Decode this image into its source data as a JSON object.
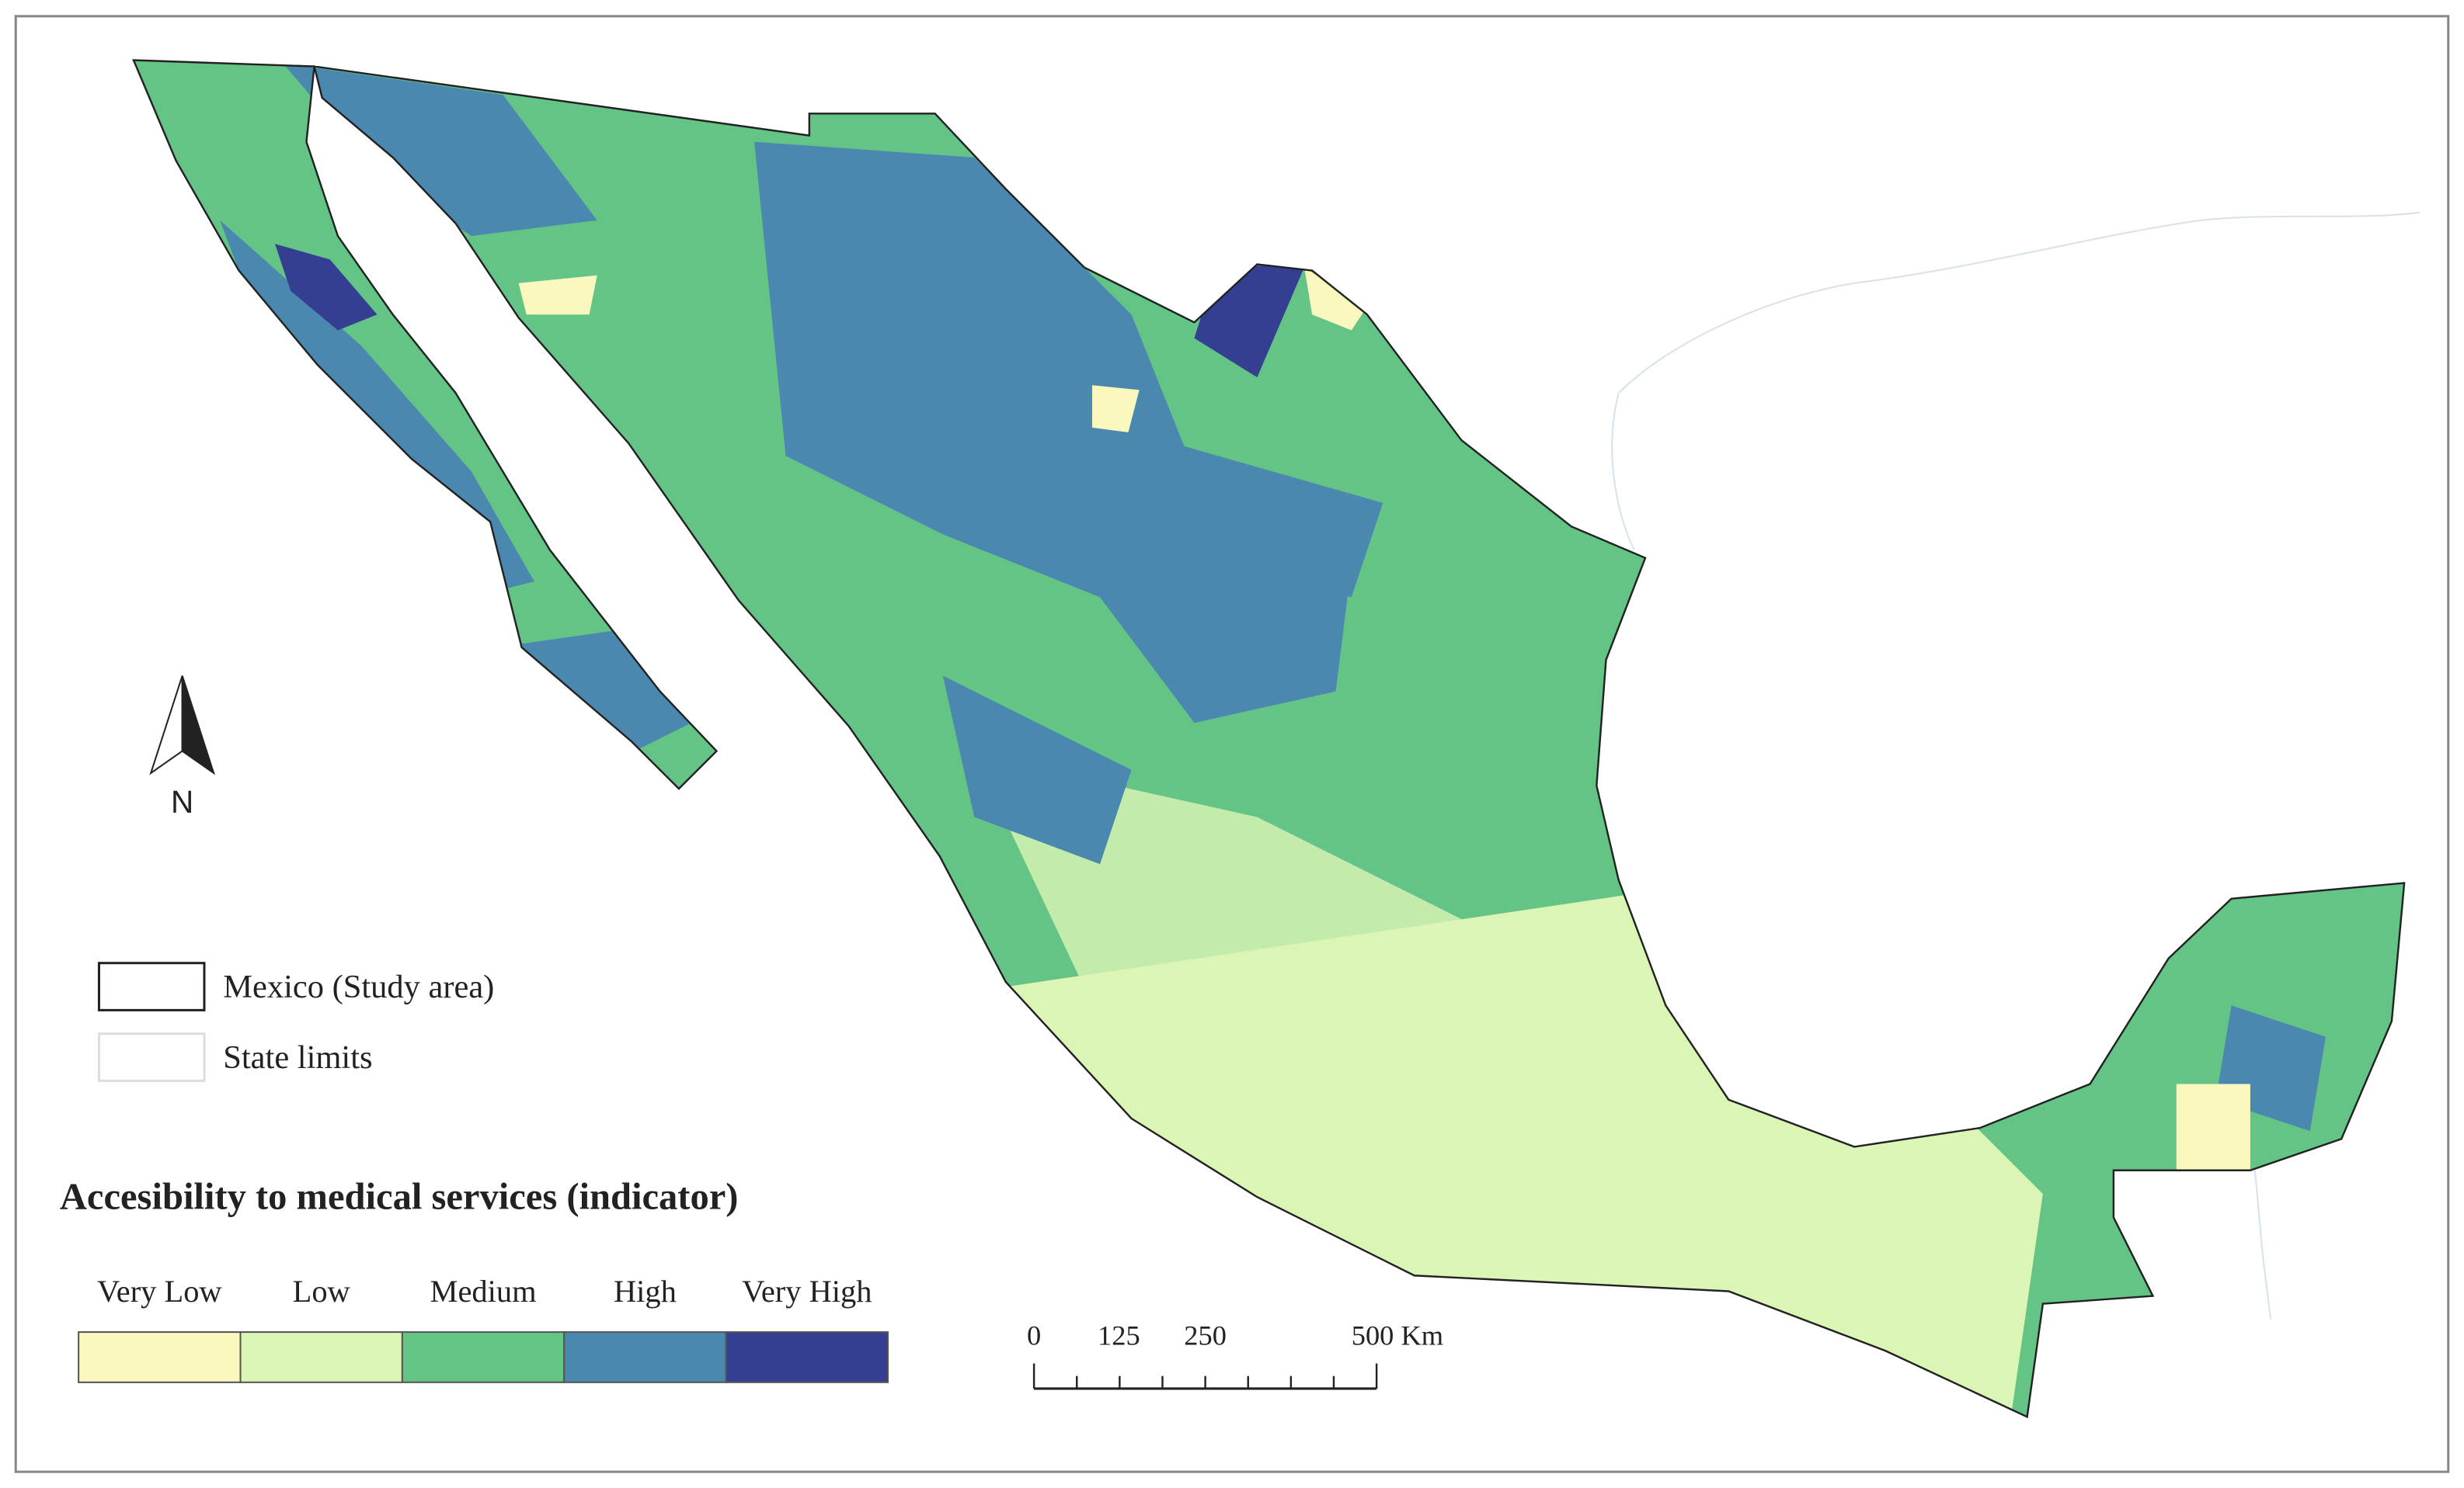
{
  "title": "Accesibility to medical services (indicator)",
  "north_arrow": "N",
  "legend": {
    "boundaries": [
      "Mexico (Study area)",
      "State limits"
    ],
    "classes": [
      {
        "label": "Very Low",
        "color": "#faf7bf"
      },
      {
        "label": "Low",
        "color": "#dbf5b5"
      },
      {
        "label": "Medium",
        "color": "#63c486"
      },
      {
        "label": "High",
        "color": "#4a88b0"
      },
      {
        "label": "Very High",
        "color": "#343f91"
      }
    ]
  },
  "scale_bar": {
    "labels": [
      "0",
      "125",
      "250",
      "500 Km"
    ]
  }
}
